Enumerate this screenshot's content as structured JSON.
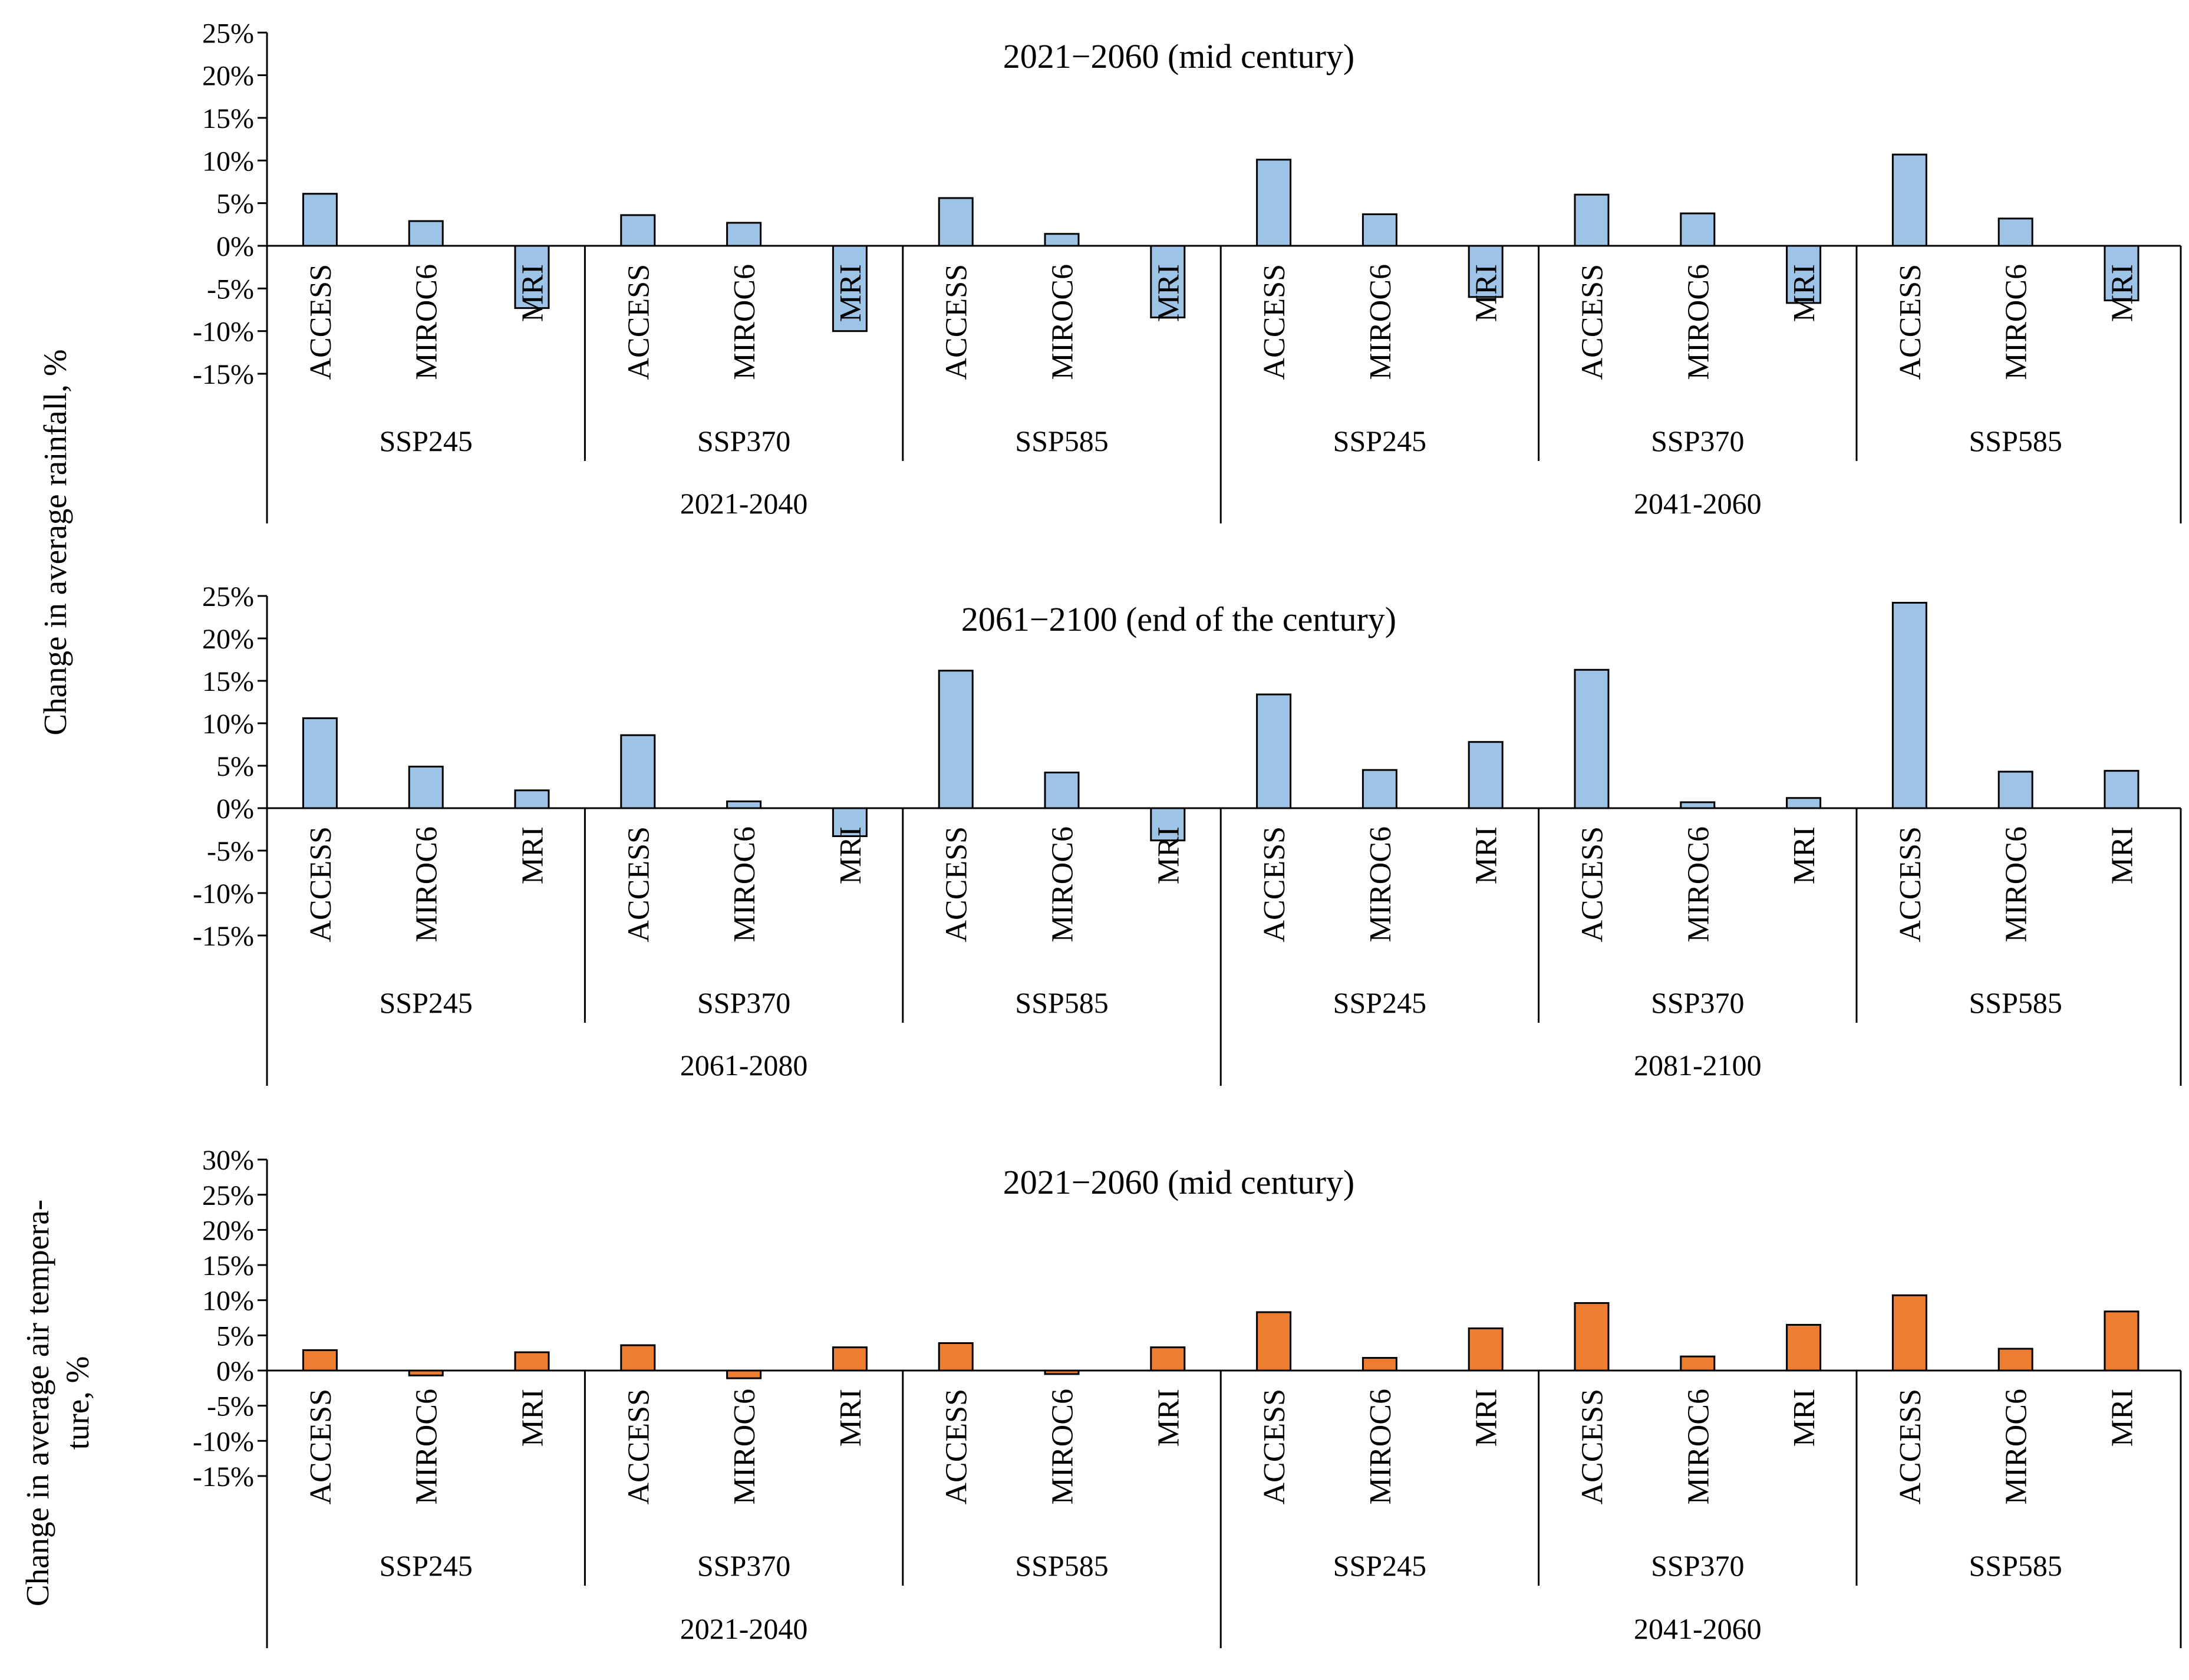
{
  "colors": {
    "rain": "#9DC3E6",
    "temp": "#ED7D31",
    "stroke": "#000000"
  },
  "ylabels": {
    "rainfall": "Change in average rainfall, %",
    "temperature_line1": "Change in average air tempera-",
    "temperature_line2": "ture, %"
  },
  "chart_data": [
    {
      "type": "bar",
      "title": "2021−2060 (mid century)",
      "ylabel": "Change in average rainfall, %",
      "ylim": [
        -15,
        25
      ],
      "yticks": [
        -15,
        -10,
        -5,
        0,
        5,
        10,
        15,
        20,
        25
      ],
      "color": "rain",
      "periods": [
        "2021-2040",
        "2041-2060"
      ],
      "scenarios": [
        "SSP245",
        "SSP370",
        "SSP585",
        "SSP245",
        "SSP370",
        "SSP585"
      ],
      "models": [
        "ACCESS",
        "MIROC6",
        "MRI"
      ],
      "values": [
        [
          6.1,
          2.9,
          -7.3
        ],
        [
          3.6,
          2.7,
          -10.0
        ],
        [
          5.6,
          1.4,
          -8.4
        ],
        [
          10.1,
          3.7,
          -6.0
        ],
        [
          6.0,
          3.8,
          -6.7
        ],
        [
          10.7,
          3.2,
          -6.4
        ]
      ]
    },
    {
      "type": "bar",
      "title": "2061−2100 (end of the century)",
      "ylabel": "Change in average rainfall, %",
      "ylim": [
        -15,
        25
      ],
      "yticks": [
        -15,
        -10,
        -5,
        0,
        5,
        10,
        15,
        20,
        25
      ],
      "color": "rain",
      "periods": [
        "2061-2080",
        "2081-2100"
      ],
      "scenarios": [
        "SSP245",
        "SSP370",
        "SSP585",
        "SSP245",
        "SSP370",
        "SSP585"
      ],
      "models": [
        "ACCESS",
        "MIROC6",
        "MRI"
      ],
      "values": [
        [
          10.6,
          4.9,
          2.1
        ],
        [
          8.6,
          0.8,
          -3.3
        ],
        [
          16.2,
          4.2,
          -3.8
        ],
        [
          13.4,
          4.5,
          7.8
        ],
        [
          16.3,
          0.7,
          1.2
        ],
        [
          24.2,
          4.3,
          4.4
        ]
      ]
    },
    {
      "type": "bar",
      "title": "2021−2060 (mid century)",
      "ylabel": "Change in average air temperature, %",
      "ylim": [
        -15,
        30
      ],
      "yticks": [
        -15,
        -10,
        -5,
        0,
        5,
        10,
        15,
        20,
        25,
        30
      ],
      "color": "temp",
      "periods": [
        "2021-2040",
        "2041-2060"
      ],
      "scenarios": [
        "SSP245",
        "SSP370",
        "SSP585",
        "SSP245",
        "SSP370",
        "SSP585"
      ],
      "models": [
        "ACCESS",
        "MIROC6",
        "MRI"
      ],
      "values": [
        [
          2.9,
          -0.7,
          2.6
        ],
        [
          3.6,
          -1.1,
          3.3
        ],
        [
          3.9,
          -0.5,
          3.3
        ],
        [
          8.3,
          1.8,
          6.0
        ],
        [
          9.6,
          2.0,
          6.5
        ],
        [
          10.7,
          3.1,
          8.4
        ]
      ]
    }
  ]
}
